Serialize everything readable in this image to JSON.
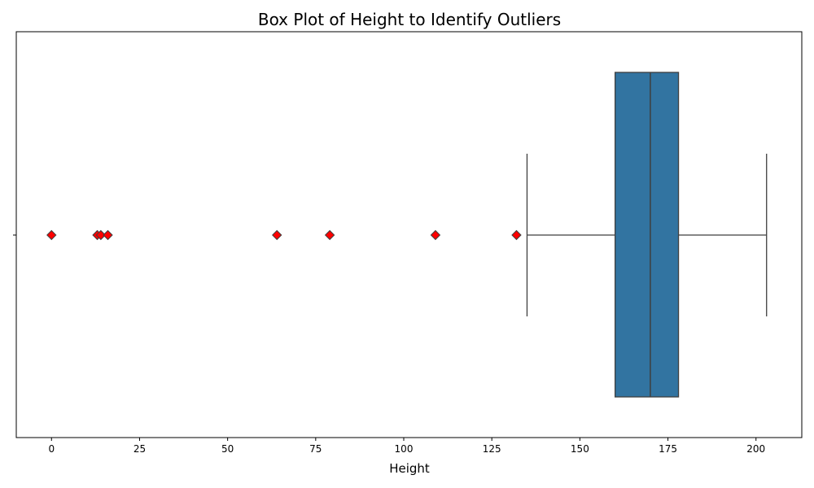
{
  "chart_data": {
    "type": "box",
    "title": "Box Plot of Height to Identify Outliers",
    "xlabel": "Height",
    "ylabel": "",
    "xlim": [
      -10,
      213
    ],
    "x_ticks": [
      0,
      25,
      50,
      75,
      100,
      125,
      150,
      175,
      200
    ],
    "grid": false,
    "orientation": "horizontal",
    "box": {
      "whisker_low": 135,
      "q1": 160,
      "median": 170,
      "q3": 178,
      "whisker_high": 203,
      "fill_color": "#3274a1",
      "line_color": "#3f3f3f"
    },
    "outliers": [
      0,
      13,
      14,
      16,
      64,
      79,
      109,
      132
    ],
    "outlier_color": "#ff0000",
    "outlier_marker": "diamond"
  }
}
